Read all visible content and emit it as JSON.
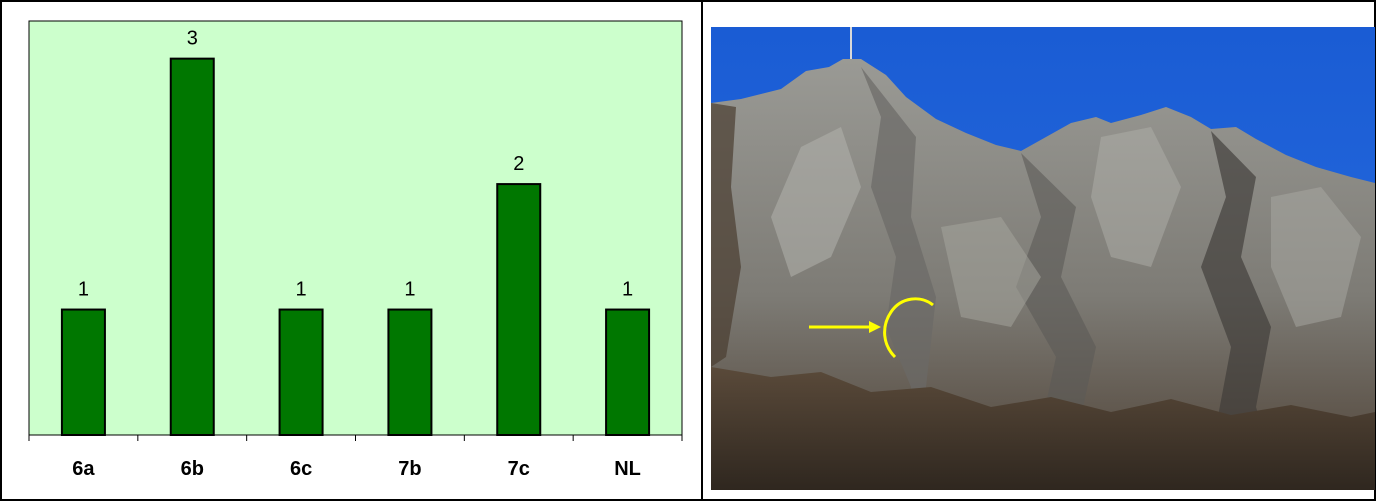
{
  "chart_data": {
    "type": "bar",
    "categories": [
      "6a",
      "6b",
      "6c",
      "7b",
      "7c",
      "NL"
    ],
    "values": [
      1,
      3,
      1,
      1,
      2,
      1
    ],
    "data_labels": [
      "1",
      "3",
      "1",
      "1",
      "2",
      "1"
    ],
    "title": "",
    "xlabel": "",
    "ylabel": "",
    "ylim": [
      0,
      3.3
    ],
    "grid": false,
    "legend": "none",
    "colors": {
      "bar": "#007700",
      "plot_background": "#ccffcc",
      "axis": "#000000"
    }
  },
  "photo": {
    "subject": "mountain-ridge-photo",
    "colors": {
      "sky": "#1f62d6",
      "rock": "#8a8a86",
      "forest": "#4a3a2c",
      "marker": "#ffff00"
    }
  }
}
